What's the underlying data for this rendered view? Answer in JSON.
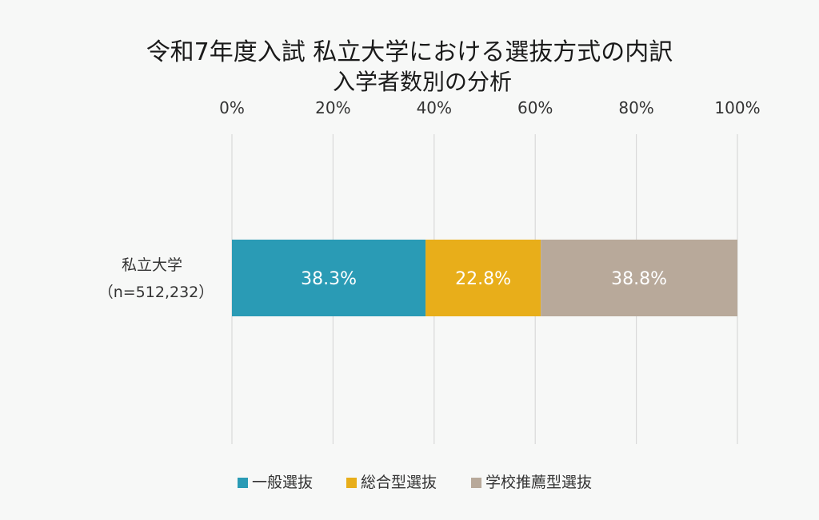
{
  "chart_data": {
    "type": "bar",
    "orientation": "horizontal",
    "stacked": true,
    "title": "令和7年度入試 私立大学における選抜方式の内訳",
    "subtitle": "入学者数別の分析",
    "categories": [
      "私立大学"
    ],
    "category_sublabels": [
      "（n=512,232）"
    ],
    "series": [
      {
        "name": "一般選抜",
        "values": [
          38.3
        ],
        "label": "38.3%",
        "color": "#2a9bb5"
      },
      {
        "name": "総合型選抜",
        "values": [
          22.8
        ],
        "label": "22.8%",
        "color": "#e8ae1a"
      },
      {
        "name": "学校推薦型選抜",
        "values": [
          38.8
        ],
        "label": "38.8%",
        "color": "#b8a99a"
      }
    ],
    "xaxis": {
      "range": [
        0,
        100
      ],
      "ticks": [
        0,
        20,
        40,
        60,
        80,
        100
      ],
      "tick_labels": [
        "0%",
        "20%",
        "40%",
        "60%",
        "80%",
        "100%"
      ],
      "position": "top"
    },
    "grid": true,
    "legend_position": "bottom"
  }
}
